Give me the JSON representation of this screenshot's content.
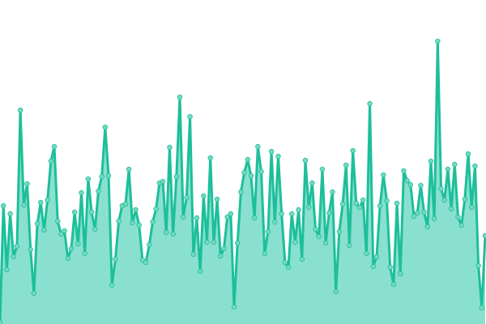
{
  "chart_data": {
    "type": "area",
    "title": "",
    "xlabel": "",
    "ylabel": "",
    "ylim": [
      0,
      400
    ],
    "grid": false,
    "legend": "none",
    "markers": true,
    "colors": {
      "line": "#1dbf9a",
      "fill": "#8ae0cf",
      "marker_fill": "#74d9c2",
      "marker_stroke": "#1dbf9a"
    },
    "series": [
      {
        "values": [
          2,
          146,
          67,
          136,
          83,
          96,
          264,
          147,
          173,
          92,
          38,
          124,
          150,
          116,
          153,
          201,
          219,
          127,
          111,
          115,
          81,
          93,
          138,
          99,
          162,
          87,
          179,
          138,
          117,
          164,
          182,
          243,
          183,
          48,
          80,
          127,
          146,
          148,
          191,
          125,
          141,
          122,
          79,
          76,
          98,
          126,
          142,
          174,
          176,
          113,
          218,
          111,
          182,
          280,
          132,
          156,
          256,
          86,
          131,
          65,
          158,
          101,
          205,
          101,
          154,
          84,
          93,
          132,
          136,
          21,
          100,
          163,
          187,
          203,
          183,
          131,
          219,
          188,
          87,
          114,
          213,
          126,
          207,
          136,
          76,
          70,
          136,
          101,
          141,
          80,
          202,
          144,
          174,
          117,
          108,
          191,
          100,
          137,
          163,
          40,
          114,
          148,
          196,
          97,
          214,
          149,
          144,
          153,
          87,
          272,
          71,
          83,
          146,
          184,
          152,
          70,
          49,
          149,
          62,
          189,
          177,
          172,
          133,
          137,
          171,
          138,
          120,
          201,
          130,
          349,
          167,
          153,
          191,
          142,
          197,
          132,
          122,
          154,
          210,
          144,
          195,
          72,
          20,
          109
        ]
      }
    ]
  }
}
